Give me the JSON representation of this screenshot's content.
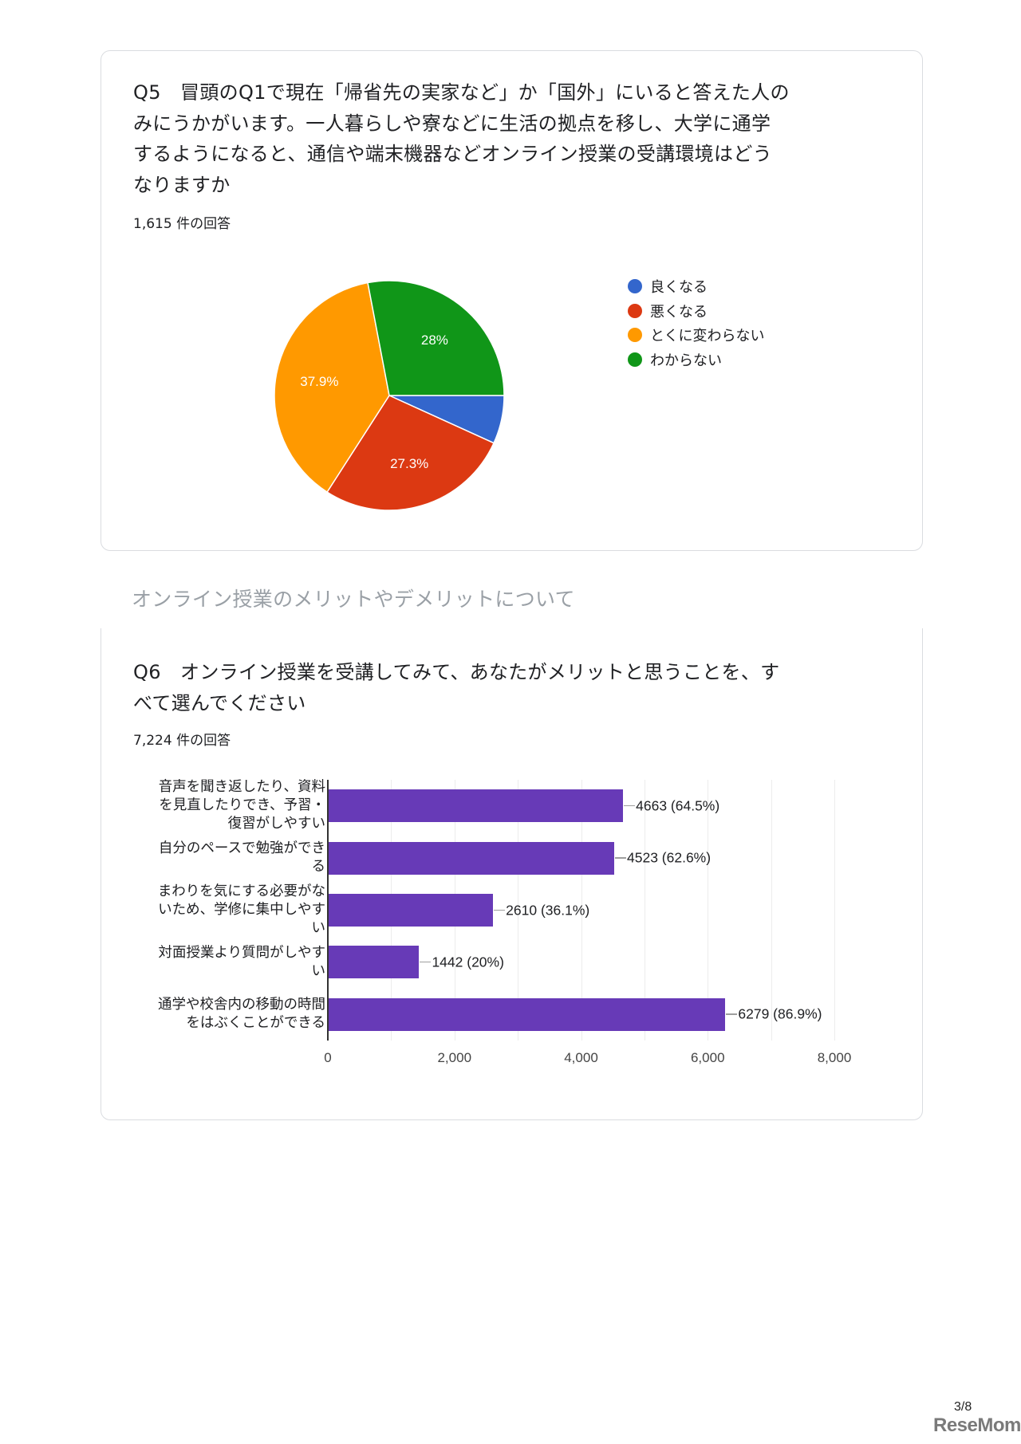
{
  "q5": {
    "title_lines": [
      "Q5　冒頭のQ1で現在「帰省先の実家など」か「国外」にいると答えた人の",
      "みにうかがいます。一人暮らしや寮などに生活の拠点を移し、大学に通学",
      "するようになると、通信や端末機器などオンライン授業の受講環境はどう",
      "なりますか"
    ],
    "response_count": "1,615 件の回答"
  },
  "section_title": "オンライン授業のメリットやデメリットについて",
  "q6": {
    "title_lines": [
      "Q6　オンライン授業を受講してみて、あなたがメリットと思うことを、す",
      "べて選んでください"
    ],
    "response_count": "7,224 件の回答"
  },
  "footer": {
    "page": "3/8",
    "logo": "ReseMom."
  },
  "chart_data": [
    {
      "type": "pie",
      "title": "Q5 受講環境の変化",
      "categories": [
        "良くなる",
        "悪くなる",
        "とくに変わらない",
        "わからない"
      ],
      "values": [
        6.8,
        27.3,
        37.9,
        28.0
      ],
      "labels": [
        "",
        "27.3%",
        "37.9%",
        "28%"
      ],
      "colors": [
        "#3366cc",
        "#dc3912",
        "#ff9900",
        "#109618"
      ],
      "legend_position": "right",
      "total_responses": 1615
    },
    {
      "type": "bar",
      "orientation": "horizontal",
      "title": "Q6 オンライン授業のメリット",
      "categories": [
        "音声を聞き返したり、資料を見直したりでき、予習・復習がしやすい",
        "自分のペースで勉強ができる",
        "まわりを気にする必要がないため、学修に集中しやすい",
        "対面授業より質問がしやすい",
        "通学や校舎内の移動の時間をはぶくことができる"
      ],
      "category_label_lines": [
        [
          "音声を聞き返したり、資料",
          "を見直したりでき、予習・",
          "復習がしやすい"
        ],
        [
          "自分のペースで勉強ができ",
          "る"
        ],
        [
          "まわりを気にする必要がな",
          "いため、学修に集中しやす",
          "い"
        ],
        [
          "対面授業より質問がしやす",
          "い"
        ],
        [
          "通学や校舎内の移動の時間",
          "をはぶくことができる"
        ]
      ],
      "values": [
        4663,
        4523,
        2610,
        1442,
        6279
      ],
      "percents": [
        "64.5%",
        "62.6%",
        "36.1%",
        "20%",
        "86.9%"
      ],
      "value_labels": [
        "4663 (64.5%)",
        "4523 (62.6%)",
        "2610 (36.1%)",
        "1442 (20%)",
        "6279 (86.9%)"
      ],
      "xticks": [
        "0",
        "2,000",
        "4,000",
        "6,000",
        "8,000"
      ],
      "xlim": [
        0,
        8000
      ],
      "grid": true,
      "color": "#673ab7",
      "total_responses": 7224
    }
  ]
}
